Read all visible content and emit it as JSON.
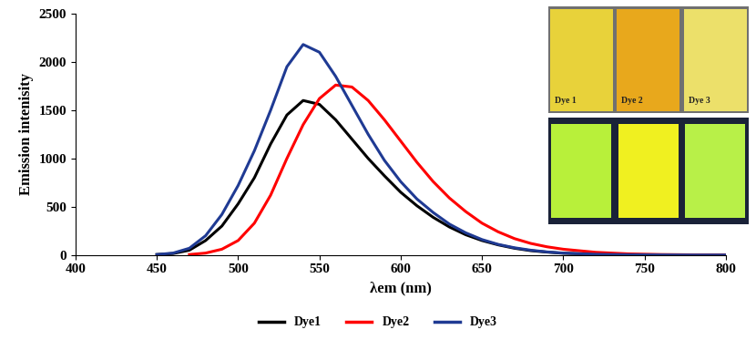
{
  "chart_data": {
    "type": "line",
    "x_label": "λem (nm)",
    "y_label": "Emission intenisity",
    "x": [
      450,
      460,
      470,
      480,
      490,
      500,
      510,
      520,
      530,
      540,
      550,
      560,
      570,
      580,
      590,
      600,
      610,
      620,
      630,
      640,
      650,
      660,
      670,
      680,
      690,
      700,
      720,
      740,
      760,
      780,
      800
    ],
    "series": [
      {
        "name": "Dye1",
        "color": "#000000",
        "values": [
          5,
          15,
          50,
          150,
          300,
          530,
          800,
          1150,
          1450,
          1600,
          1560,
          1400,
          1200,
          1000,
          820,
          650,
          510,
          390,
          290,
          210,
          150,
          105,
          70,
          45,
          30,
          18,
          8,
          3,
          1,
          0,
          0
        ]
      },
      {
        "name": "Dye2",
        "color": "#ff0000",
        "values": [
          null,
          null,
          5,
          20,
          60,
          150,
          330,
          620,
          1000,
          1350,
          1620,
          1760,
          1740,
          1600,
          1400,
          1180,
          960,
          760,
          590,
          450,
          330,
          240,
          170,
          120,
          85,
          60,
          28,
          12,
          5,
          2,
          0
        ]
      },
      {
        "name": "Dye3",
        "color": "#1f3a93",
        "values": [
          5,
          20,
          70,
          200,
          420,
          720,
          1080,
          1500,
          1950,
          2180,
          2100,
          1850,
          1550,
          1250,
          980,
          760,
          580,
          440,
          320,
          230,
          160,
          110,
          75,
          50,
          32,
          20,
          8,
          3,
          1,
          0,
          0
        ]
      }
    ],
    "xlim": [
      400,
      800
    ],
    "xticks": [
      400,
      450,
      500,
      550,
      600,
      650,
      700,
      750,
      800
    ],
    "ylim": [
      0,
      2500
    ],
    "yticks": [
      0,
      500,
      1000,
      1500,
      2000,
      2500
    ],
    "grid": false,
    "legend": "lower center",
    "annotations": [
      "Dye 1",
      "Dye 2",
      "Dye 3"
    ]
  }
}
